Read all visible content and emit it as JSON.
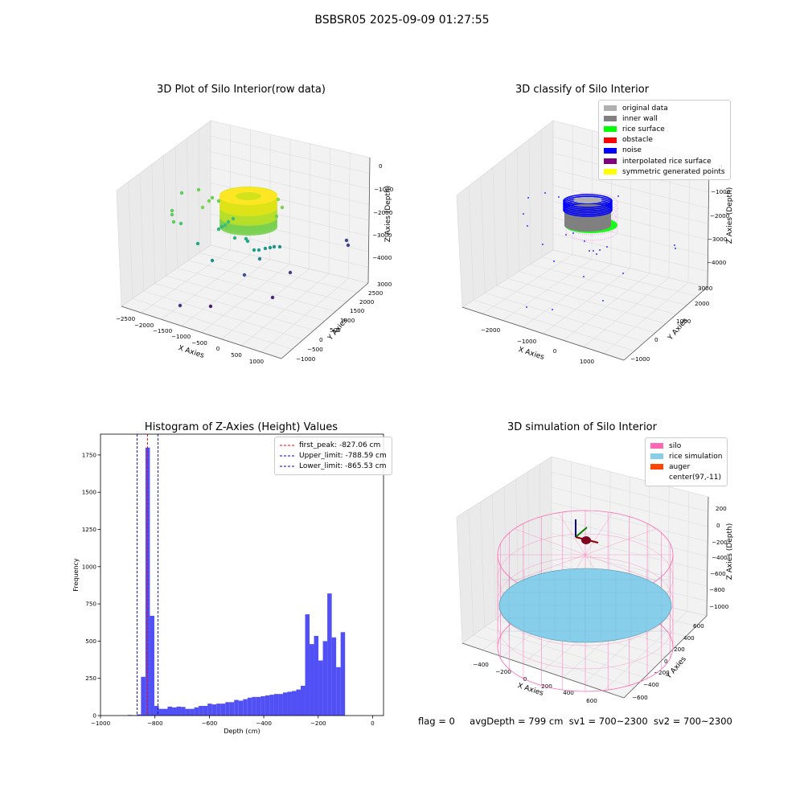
{
  "figure_title": "BSBSR05 2025-09-09 01:27:55",
  "footer": {
    "flag": "flag = 0",
    "avg": "avgDepth = 799 cm",
    "sv1": "sv1 = 700~2300",
    "sv2": "sv2 = 700~2300"
  },
  "colors": {
    "pane": "#f2f2f2",
    "pane_side": "#eaeaea",
    "grid": "#dcdcdc",
    "hist_bar": "#5050f5"
  },
  "chart_data": [
    {
      "type": "scatter",
      "title": "3D Plot of Silo Interior(row data)",
      "xlabel": "X Axies",
      "ylabel": "Y Axies",
      "zlabel": "Z Axies (Depth)",
      "x_ticks": [
        "−2500",
        "−2000",
        "−1500",
        "−1000",
        "−500",
        "0",
        "500",
        "1000"
      ],
      "y_ticks": [
        "−1000",
        "−500",
        "0",
        "500",
        "1000",
        "1500",
        "2000",
        "2500",
        "3000"
      ],
      "z_ticks": [
        "0",
        "−1000",
        "−2000",
        "−3000",
        "−4000"
      ],
      "colormap": "viridis"
    },
    {
      "type": "scatter",
      "title": "3D classify of Silo Interior",
      "xlabel": "X Axies",
      "ylabel": "Y Axies",
      "zlabel": "Z Axies (Depth)",
      "x_ticks": [
        "−2000",
        "−1000",
        "0",
        "1000"
      ],
      "y_ticks": [
        "−1000",
        "0",
        "1000",
        "2000",
        "3000"
      ],
      "z_ticks": [
        "0",
        "−1000",
        "−2000",
        "−3000",
        "−4000"
      ],
      "legend": [
        {
          "label": "original data",
          "color": "#b0b0b0"
        },
        {
          "label": "inner wall",
          "color": "#808080"
        },
        {
          "label": "rice surface",
          "color": "#00ff00"
        },
        {
          "label": "obstacle",
          "color": "#ff0000"
        },
        {
          "label": "noise",
          "color": "#0000ff"
        },
        {
          "label": "interpolated rice surface",
          "color": "#800080"
        },
        {
          "label": "symmetric generated points",
          "color": "#ffff00"
        }
      ]
    },
    {
      "type": "bar",
      "title": "Histogram of Z-Axies (Height) Values",
      "xlabel": "Depth (cm)",
      "ylabel": "Frequency",
      "xlim": [
        -1000,
        40
      ],
      "ylim": [
        0,
        1890
      ],
      "x_ticks": [
        -1000,
        -800,
        -600,
        -400,
        -200,
        0
      ],
      "y_ticks": [
        0,
        250,
        500,
        750,
        1000,
        1250,
        1500,
        1750
      ],
      "bin_width": 16.3,
      "bins": [
        {
          "x0": -900,
          "v": 4
        },
        {
          "x0": -883.7,
          "v": 2
        },
        {
          "x0": -867.4,
          "v": 8
        },
        {
          "x0": -851.1,
          "v": 260
        },
        {
          "x0": -834.8,
          "v": 1800
        },
        {
          "x0": -818.5,
          "v": 670
        },
        {
          "x0": -802.2,
          "v": 65
        },
        {
          "x0": -785.9,
          "v": 45
        },
        {
          "x0": -769.6,
          "v": 45
        },
        {
          "x0": -753.3,
          "v": 60
        },
        {
          "x0": -737,
          "v": 55
        },
        {
          "x0": -720.7,
          "v": 60
        },
        {
          "x0": -704.4,
          "v": 58
        },
        {
          "x0": -688.1,
          "v": 45
        },
        {
          "x0": -671.8,
          "v": 45
        },
        {
          "x0": -655.5,
          "v": 55
        },
        {
          "x0": -639.2,
          "v": 65
        },
        {
          "x0": -622.9,
          "v": 65
        },
        {
          "x0": -606.6,
          "v": 80
        },
        {
          "x0": -590.3,
          "v": 75
        },
        {
          "x0": -574,
          "v": 80
        },
        {
          "x0": -557.7,
          "v": 80
        },
        {
          "x0": -541.4,
          "v": 90
        },
        {
          "x0": -525.1,
          "v": 90
        },
        {
          "x0": -508.8,
          "v": 105
        },
        {
          "x0": -492.5,
          "v": 100
        },
        {
          "x0": -476.2,
          "v": 110
        },
        {
          "x0": -459.9,
          "v": 120
        },
        {
          "x0": -443.6,
          "v": 125
        },
        {
          "x0": -427.3,
          "v": 125
        },
        {
          "x0": -411,
          "v": 130
        },
        {
          "x0": -394.7,
          "v": 135
        },
        {
          "x0": -378.4,
          "v": 140
        },
        {
          "x0": -362.1,
          "v": 145
        },
        {
          "x0": -345.8,
          "v": 145
        },
        {
          "x0": -329.5,
          "v": 155
        },
        {
          "x0": -313.2,
          "v": 160
        },
        {
          "x0": -296.9,
          "v": 165
        },
        {
          "x0": -280.6,
          "v": 175
        },
        {
          "x0": -264.3,
          "v": 200
        },
        {
          "x0": -248,
          "v": 680
        },
        {
          "x0": -231.7,
          "v": 480
        },
        {
          "x0": -215.4,
          "v": 535
        },
        {
          "x0": -199.1,
          "v": 370
        },
        {
          "x0": -182.8,
          "v": 500
        },
        {
          "x0": -166.5,
          "v": 820
        },
        {
          "x0": -150.2,
          "v": 525
        },
        {
          "x0": -133.9,
          "v": 325
        },
        {
          "x0": -117.6,
          "v": 560
        }
      ],
      "vlines": [
        {
          "label": "first_peak: -827.06 cm",
          "x": -827.06,
          "color": "#ff0000"
        },
        {
          "label": "Upper_limit: -788.59 cm",
          "x": -788.59,
          "color": "#0000cc"
        },
        {
          "label": "Lower_limit: -865.53 cm",
          "x": -865.53,
          "color": "#0000cc"
        }
      ]
    },
    {
      "type": "scatter",
      "title": "3D simulation of Silo Interior",
      "xlabel": "X Axies",
      "ylabel": "Y Axies",
      "zlabel": "Z Axies (Depth)",
      "x_ticks": [
        "−400",
        "−200",
        "0",
        "200",
        "400",
        "600"
      ],
      "y_ticks": [
        "−600",
        "−400",
        "−200",
        "0",
        "200",
        "400",
        "600"
      ],
      "z_ticks": [
        "200",
        "0",
        "−200",
        "−400",
        "−600",
        "−800",
        "−1000"
      ],
      "legend": [
        {
          "label": "silo",
          "color": "#ff69b4"
        },
        {
          "label": "rice simulation",
          "color": "#87ceeb"
        },
        {
          "label": "auger",
          "color": "#ff4500"
        },
        {
          "label": "center(97,-11)",
          "color": ""
        }
      ]
    }
  ]
}
